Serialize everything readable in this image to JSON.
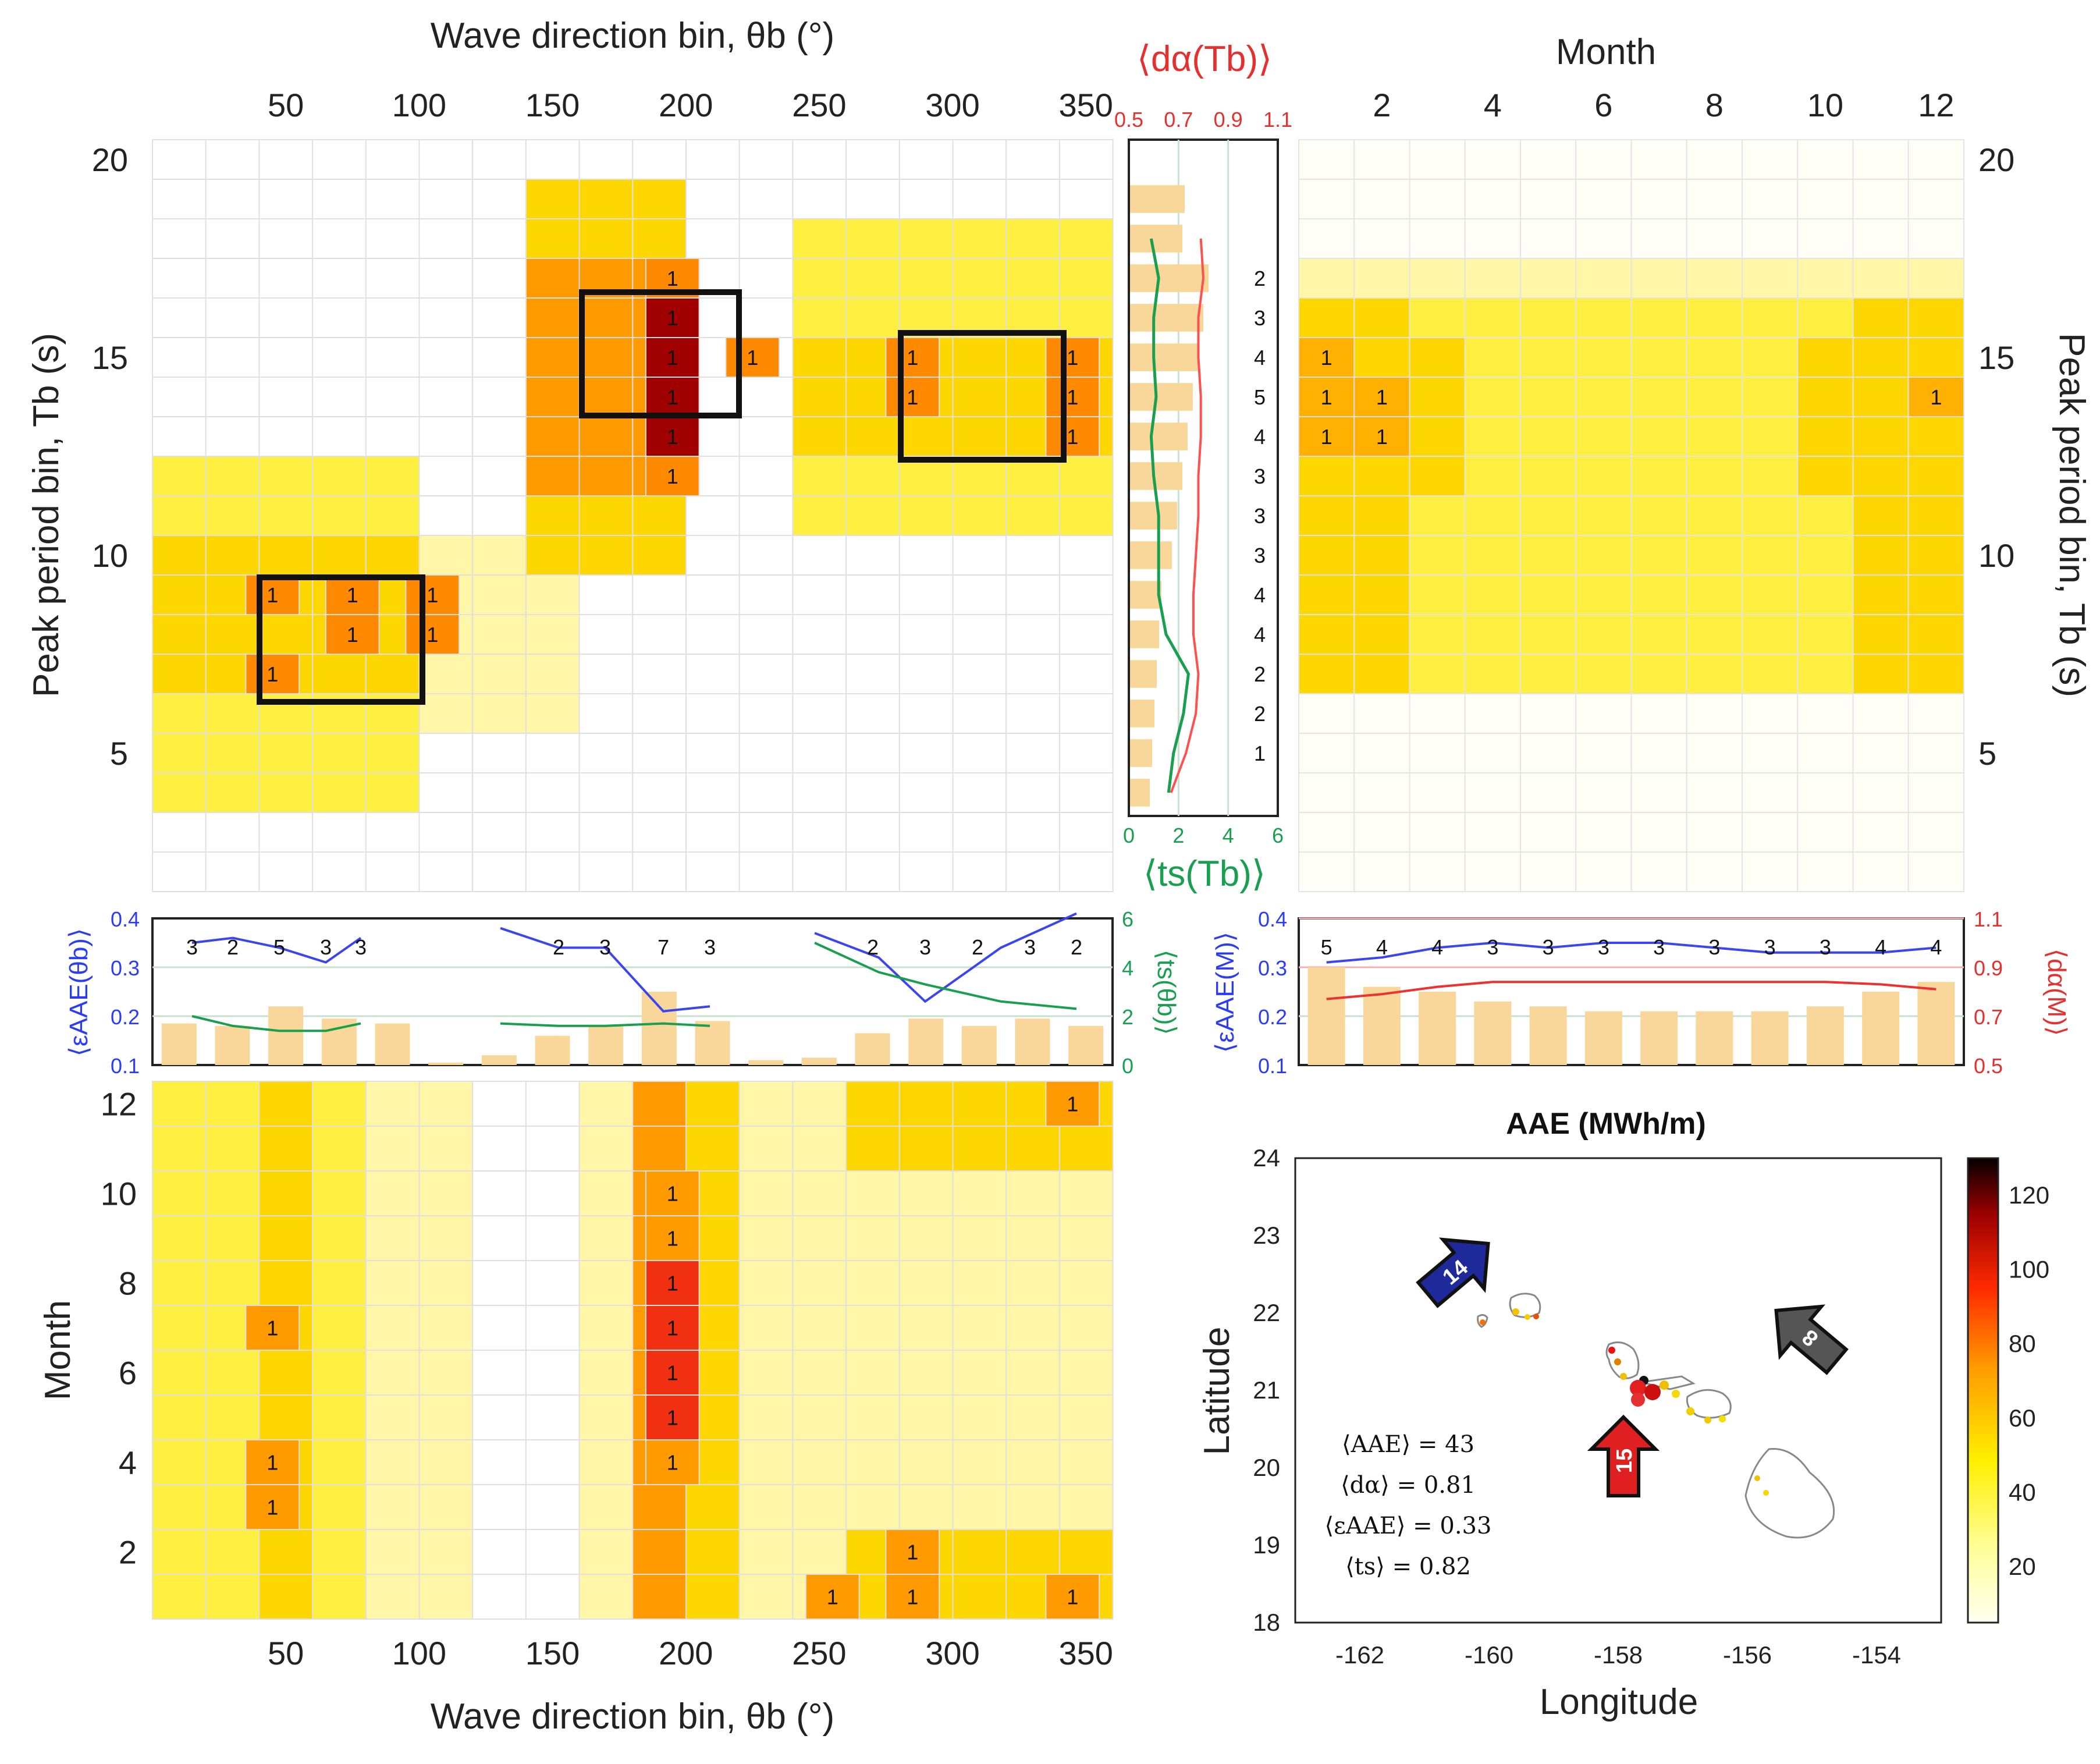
{
  "chart_data": [
    {
      "id": "direction-period-heatmap",
      "type": "heatmap",
      "xlabel": "Wave direction bin, θb (°)",
      "ylabel": "Peak period bin,   Tb (s)",
      "x_ticks": [
        "50",
        "100",
        "150",
        "200",
        "250",
        "300",
        "350"
      ],
      "y_ticks": [
        "5",
        "10",
        "15",
        "20"
      ],
      "x_bins_deg": [
        15,
        45,
        75,
        105,
        135,
        165,
        195,
        225,
        255,
        285,
        315,
        345
      ],
      "y_bins_s": [
        3,
        4,
        5,
        6,
        7,
        8,
        9,
        10,
        11,
        12,
        13,
        14,
        15,
        16,
        17,
        18,
        19,
        20
      ],
      "labeled_cells": [
        {
          "dir": 195,
          "period": 17,
          "label": "1"
        },
        {
          "dir": 195,
          "period": 16,
          "label": "1"
        },
        {
          "dir": 195,
          "period": 15,
          "label": "1"
        },
        {
          "dir": 225,
          "period": 15,
          "label": "1"
        },
        {
          "dir": 195,
          "period": 14,
          "label": "1"
        },
        {
          "dir": 195,
          "period": 13,
          "label": "1"
        },
        {
          "dir": 195,
          "period": 12,
          "label": "1"
        },
        {
          "dir": 285,
          "period": 15,
          "label": "1"
        },
        {
          "dir": 345,
          "period": 15,
          "label": "1"
        },
        {
          "dir": 285,
          "period": 14,
          "label": "1"
        },
        {
          "dir": 345,
          "period": 14,
          "label": "1"
        },
        {
          "dir": 345,
          "period": 13,
          "label": "1"
        },
        {
          "dir": 45,
          "period": 9,
          "label": "1"
        },
        {
          "dir": 75,
          "period": 9,
          "label": "1"
        },
        {
          "dir": 105,
          "period": 9,
          "label": "1"
        },
        {
          "dir": 75,
          "period": 8,
          "label": "1"
        },
        {
          "dir": 105,
          "period": 8,
          "label": "1"
        },
        {
          "dir": 45,
          "period": 7,
          "label": "1"
        }
      ]
    },
    {
      "id": "month-period-heatmap",
      "type": "heatmap",
      "xlabel": "Month",
      "ylabel": "Peak period bin,   Tb (s)",
      "x_ticks": [
        "2",
        "4",
        "6",
        "8",
        "10",
        "12"
      ],
      "y_ticks": [
        "5",
        "10",
        "15",
        "20"
      ],
      "labeled_cells": [
        {
          "month": 1,
          "period": 15,
          "label": "1"
        },
        {
          "month": 1,
          "period": 14,
          "label": "1"
        },
        {
          "month": 2,
          "period": 14,
          "label": "1"
        },
        {
          "month": 12,
          "period": 14,
          "label": "1"
        },
        {
          "month": 1,
          "period": 13,
          "label": "1"
        },
        {
          "month": 2,
          "period": 13,
          "label": "1"
        }
      ]
    },
    {
      "id": "direction-month-heatmap",
      "type": "heatmap",
      "xlabel": "Wave direction bin, θb (°)",
      "ylabel": "Month",
      "x_ticks": [
        "50",
        "100",
        "150",
        "200",
        "250",
        "300",
        "350"
      ],
      "y_ticks": [
        "2",
        "4",
        "6",
        "8",
        "10",
        "12"
      ],
      "labeled_cells": [
        {
          "dir": 345,
          "month": 12,
          "label": "1"
        },
        {
          "dir": 195,
          "month": 10,
          "label": "1"
        },
        {
          "dir": 195,
          "month": 9,
          "label": "1"
        },
        {
          "dir": 195,
          "month": 8,
          "label": "1"
        },
        {
          "dir": 45,
          "month": 7,
          "label": "1"
        },
        {
          "dir": 195,
          "month": 7,
          "label": "1"
        },
        {
          "dir": 195,
          "month": 6,
          "label": "1"
        },
        {
          "dir": 195,
          "month": 5,
          "label": "1"
        },
        {
          "dir": 45,
          "month": 4,
          "label": "1"
        },
        {
          "dir": 195,
          "month": 4,
          "label": "1"
        },
        {
          "dir": 45,
          "month": 3,
          "label": "1"
        },
        {
          "dir": 285,
          "month": 2,
          "label": "1"
        },
        {
          "dir": 255,
          "month": 1,
          "label": "1"
        },
        {
          "dir": 285,
          "month": 1,
          "label": "1"
        },
        {
          "dir": 345,
          "month": 1,
          "label": "1"
        }
      ]
    },
    {
      "id": "period-strip",
      "type": "line",
      "top_label": "⟨dα(Tb)⟩",
      "bottom_label": "⟨ts(Tb)⟩",
      "top_ticks": [
        "0.5",
        "0.7",
        "0.9",
        "1.1"
      ],
      "bottom_ticks": [
        "0",
        "2",
        "4",
        "6"
      ],
      "counts": [
        {
          "period": 17,
          "label": "2"
        },
        {
          "period": 16,
          "label": "3"
        },
        {
          "period": 15,
          "label": "4"
        },
        {
          "period": 14,
          "label": "5"
        },
        {
          "period": 13,
          "label": "4"
        },
        {
          "period": 12,
          "label": "3"
        },
        {
          "period": 11,
          "label": "3"
        },
        {
          "period": 10,
          "label": "3"
        },
        {
          "period": 9,
          "label": "4"
        },
        {
          "period": 8,
          "label": "4"
        },
        {
          "period": 7,
          "label": "2"
        },
        {
          "period": 6,
          "label": "2"
        },
        {
          "period": 5,
          "label": "1"
        }
      ],
      "d_alpha": {
        "periods": [
          4,
          5,
          6,
          7,
          8,
          9,
          10,
          11,
          12,
          13,
          14,
          15,
          16,
          17,
          18
        ],
        "values": [
          0.67,
          0.73,
          0.77,
          0.78,
          0.76,
          0.76,
          0.77,
          0.78,
          0.78,
          0.79,
          0.79,
          0.78,
          0.78,
          0.8,
          0.79
        ]
      },
      "t_s": {
        "periods": [
          4,
          5,
          6,
          7,
          8,
          9,
          10,
          11,
          12,
          13,
          14,
          15,
          16,
          17,
          18
        ],
        "values": [
          1.6,
          1.8,
          2.2,
          2.4,
          1.5,
          1.2,
          1.2,
          1.2,
          1.0,
          0.9,
          1.1,
          1.0,
          1.0,
          1.2,
          0.9
        ]
      }
    },
    {
      "id": "direction-strip",
      "type": "line",
      "left_label": "⟨εAAE(θb)⟩",
      "right_label": "⟨ts(θb)⟩",
      "left_ticks": [
        "0.1",
        "0.2",
        "0.3",
        "0.4"
      ],
      "right_ticks": [
        "0",
        "2",
        "4",
        "6"
      ],
      "counts": [
        {
          "dir": 15,
          "label": "3"
        },
        {
          "dir": 45,
          "label": "2"
        },
        {
          "dir": 75,
          "label": "5"
        },
        {
          "dir": 105,
          "label": "3"
        },
        {
          "dir": 135,
          "label": "3"
        },
        {
          "dir": 165,
          "label": "2"
        },
        {
          "dir": 195,
          "label": "3"
        },
        {
          "dir": 225,
          "label": "7"
        },
        {
          "dir": 255,
          "label": "3"
        },
        {
          "dir": 285,
          "label": "2"
        },
        {
          "dir": 315,
          "label": "3"
        },
        {
          "dir": 345,
          "label": "2"
        },
        {
          "dir": 375,
          "label": "3"
        },
        {
          "dir": 405,
          "label": "2"
        }
      ],
      "eps_aae_segments": [
        {
          "dirs": [
            15,
            45,
            75,
            105,
            135
          ],
          "values": [
            0.35,
            0.36,
            0.34,
            0.31,
            0.36
          ]
        },
        {
          "dirs": [
            165,
            195,
            225,
            255,
            285
          ],
          "values": [
            0.38,
            0.34,
            0.34,
            0.21,
            0.22
          ]
        },
        {
          "dirs": [
            315,
            345,
            375,
            405,
            435
          ],
          "values": [
            0.37,
            0.32,
            0.23,
            0.34,
            0.41
          ]
        }
      ],
      "t_s_segments": [
        {
          "dirs": [
            15,
            45,
            75,
            105,
            135
          ],
          "values": [
            2.0,
            1.6,
            1.4,
            1.4,
            1.7
          ]
        },
        {
          "dirs": [
            165,
            195,
            225,
            255,
            285
          ],
          "values": [
            1.7,
            1.6,
            1.6,
            1.7,
            1.6
          ]
        },
        {
          "dirs": [
            315,
            345,
            375,
            405,
            435
          ],
          "values": [
            5.0,
            3.8,
            3.3,
            2.6,
            2.3
          ]
        }
      ],
      "bars_ts": [
        1.7,
        1.6,
        2.4,
        1.9,
        1.7,
        0.1,
        0.4,
        1.2,
        1.6,
        3.0,
        1.8,
        0.2,
        0.3,
        1.3,
        1.9,
        1.6,
        1.9,
        1.6
      ]
    },
    {
      "id": "month-strip",
      "type": "line",
      "left_label": "⟨εAAE(M)⟩",
      "right_label": "⟨dα(M)⟩",
      "left_ticks": [
        "0.1",
        "0.2",
        "0.3",
        "0.4"
      ],
      "right_ticks": [
        "0.5",
        "0.7",
        "0.9",
        "1.1"
      ],
      "counts": [
        {
          "month": 1,
          "label": "5"
        },
        {
          "month": 2,
          "label": "4"
        },
        {
          "month": 3,
          "label": "4"
        },
        {
          "month": 4,
          "label": "3"
        },
        {
          "month": 5,
          "label": "3"
        },
        {
          "month": 6,
          "label": "3"
        },
        {
          "month": 7,
          "label": "3"
        },
        {
          "month": 8,
          "label": "3"
        },
        {
          "month": 9,
          "label": "3"
        },
        {
          "month": 10,
          "label": "3"
        },
        {
          "month": 11,
          "label": "4"
        },
        {
          "month": 12,
          "label": "4"
        }
      ],
      "eps_aae": [
        0.31,
        0.32,
        0.34,
        0.35,
        0.34,
        0.35,
        0.35,
        0.34,
        0.33,
        0.33,
        0.33,
        0.34
      ],
      "d_alpha": [
        0.77,
        0.79,
        0.82,
        0.84,
        0.84,
        0.84,
        0.84,
        0.84,
        0.84,
        0.84,
        0.83,
        0.81
      ],
      "bars": [
        0.3,
        0.26,
        0.25,
        0.23,
        0.22,
        0.21,
        0.21,
        0.21,
        0.21,
        0.22,
        0.25,
        0.27
      ]
    },
    {
      "id": "aae-map",
      "type": "scatter",
      "title": "AAE (MWh/m)",
      "xlabel": "Longitude",
      "ylabel": "Latitude",
      "x_ticks": [
        "-162",
        "-160",
        "-158",
        "-156",
        "-154"
      ],
      "y_ticks": [
        "18",
        "19",
        "20",
        "21",
        "22",
        "23",
        "24"
      ],
      "colorbar_ticks": [
        "20",
        "40",
        "60",
        "80",
        "100",
        "120"
      ],
      "arrows": [
        {
          "label": "14",
          "color": "#1f2a9a",
          "direction": "from-northwest"
        },
        {
          "label": "8",
          "color": "#555555",
          "direction": "from-northeast"
        },
        {
          "label": "15",
          "color": "#e02020",
          "direction": "from-south"
        }
      ],
      "annotations": [
        "⟨AAE⟩ = 43",
        "⟨dα⟩ = 0.81",
        "⟨εAAE⟩ = 0.33",
        "⟨ts⟩ = 0.82"
      ]
    }
  ]
}
